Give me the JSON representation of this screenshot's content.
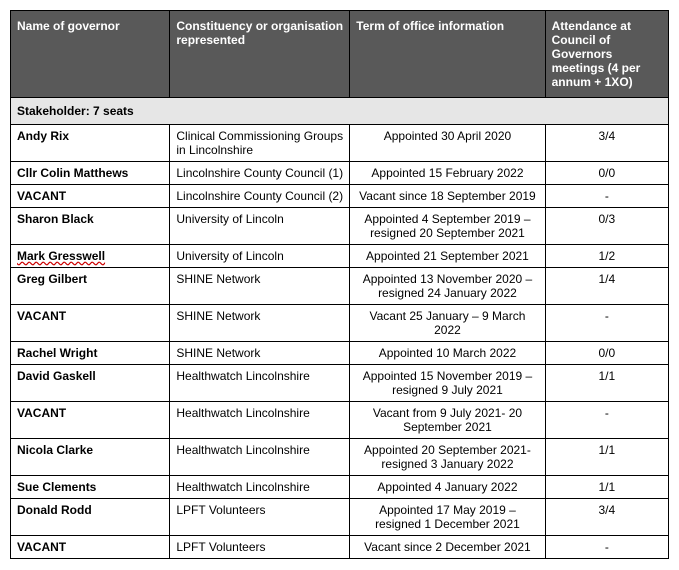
{
  "table": {
    "header": {
      "name": "Name of governor",
      "org": "Constituency or organisation represented",
      "term": "Term of office information",
      "att": "Attendance at Council of Governors meetings (4 per annum + 1XO)"
    },
    "section_label": "Stakeholder: 7 seats",
    "rows": [
      {
        "name": "Andy Rix",
        "vacant": false,
        "org": "Clinical Commissioning Groups in Lincolnshire",
        "term": "Appointed 30 April 2020",
        "att": "3/4",
        "wavy": false
      },
      {
        "name": "Cllr Colin Matthews",
        "vacant": false,
        "org": "Lincolnshire County Council (1)",
        "term": "Appointed 15 February 2022",
        "att": "0/0",
        "wavy": false
      },
      {
        "name": "VACANT",
        "vacant": true,
        "org": "Lincolnshire County Council (2)",
        "term": "Vacant since 18 September 2019",
        "att": "-",
        "wavy": false
      },
      {
        "name": "Sharon Black",
        "vacant": false,
        "org": "University of Lincoln",
        "term": "Appointed 4 September 2019 – resigned 20 September 2021",
        "att": "0/3",
        "wavy": false
      },
      {
        "name": "Mark Gresswell",
        "vacant": false,
        "org": "University of Lincoln",
        "term": "Appointed 21 September 2021",
        "att": "1/2",
        "wavy": true
      },
      {
        "name": "Greg Gilbert",
        "vacant": false,
        "org": "SHINE Network",
        "term": "Appointed 13 November 2020 – resigned 24 January 2022",
        "att": "1/4",
        "wavy": false
      },
      {
        "name": "VACANT",
        "vacant": true,
        "org": "SHINE Network",
        "term": "Vacant 25 January – 9 March 2022",
        "att": "-",
        "wavy": false
      },
      {
        "name": "Rachel Wright",
        "vacant": false,
        "org": "SHINE Network",
        "term": "Appointed 10 March 2022",
        "att": "0/0",
        "wavy": false
      },
      {
        "name": "David Gaskell",
        "vacant": false,
        "org": "Healthwatch Lincolnshire",
        "term": "Appointed 15 November 2019 – resigned 9 July 2021",
        "att": "1/1",
        "wavy": false
      },
      {
        "name": "VACANT",
        "vacant": true,
        "org": "Healthwatch Lincolnshire",
        "term": "Vacant from 9 July 2021- 20 September 2021",
        "att": "-",
        "wavy": false
      },
      {
        "name": "Nicola Clarke",
        "vacant": false,
        "org": "Healthwatch Lincolnshire",
        "term": "Appointed 20 September 2021- resigned 3 January 2022",
        "att": "1/1",
        "wavy": false
      },
      {
        "name": "Sue Clements",
        "vacant": false,
        "org": "Healthwatch Lincolnshire",
        "term": "Appointed 4 January 2022",
        "att": "1/1",
        "wavy": false
      },
      {
        "name": "Donald Rodd",
        "vacant": false,
        "org": "LPFT Volunteers",
        "term": "Appointed 17 May 2019 – resigned 1 December 2021",
        "att": "3/4",
        "wavy": false
      },
      {
        "name": "VACANT",
        "vacant": true,
        "org": "LPFT Volunteers",
        "term": "Vacant since 2 December 2021",
        "att": "-",
        "wavy": false
      }
    ]
  },
  "colors": {
    "header_bg": "#595959",
    "header_fg": "#ffffff",
    "section_bg": "#e6e6e6",
    "border": "#000000",
    "bg": "#ffffff"
  }
}
